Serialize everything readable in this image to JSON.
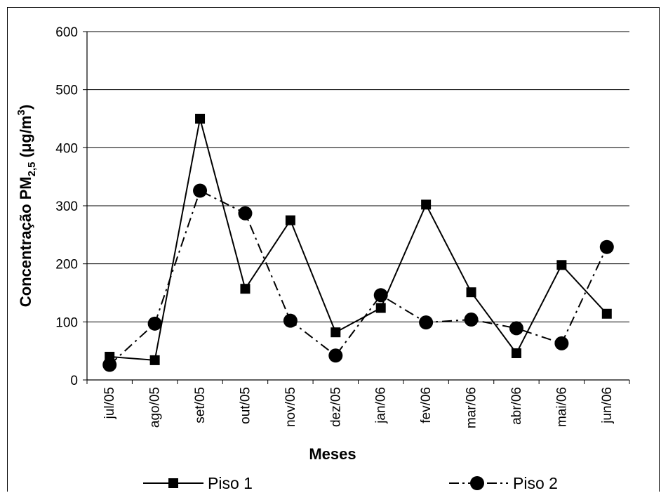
{
  "chart_data": {
    "type": "line",
    "categories": [
      "jul/05",
      "ago/05",
      "set/05",
      "out/05",
      "nov/05",
      "dez/05",
      "jan/06",
      "fev/06",
      "mar/06",
      "abr/06",
      "mai/06",
      "jun/06"
    ],
    "series": [
      {
        "name": "Piso 1",
        "marker": "square",
        "line": "solid",
        "values": [
          40,
          34,
          450,
          157,
          275,
          82,
          124,
          302,
          151,
          46,
          198,
          114
        ]
      },
      {
        "name": "Piso 2",
        "marker": "circle",
        "line": "dash-dot",
        "values": [
          26,
          97,
          326,
          287,
          102,
          42,
          146,
          99,
          104,
          89,
          63,
          229
        ]
      }
    ],
    "xlabel": "Meses",
    "ylabel": {
      "main": "Concentração PM",
      "sub": "2,5",
      "unit_open": " (μg/m",
      "sup": "3",
      "unit_close": ")"
    },
    "ylim": [
      0,
      600
    ],
    "yticks": [
      0,
      100,
      200,
      300,
      400,
      500,
      600
    ],
    "grid": true,
    "legend_position": "bottom"
  }
}
